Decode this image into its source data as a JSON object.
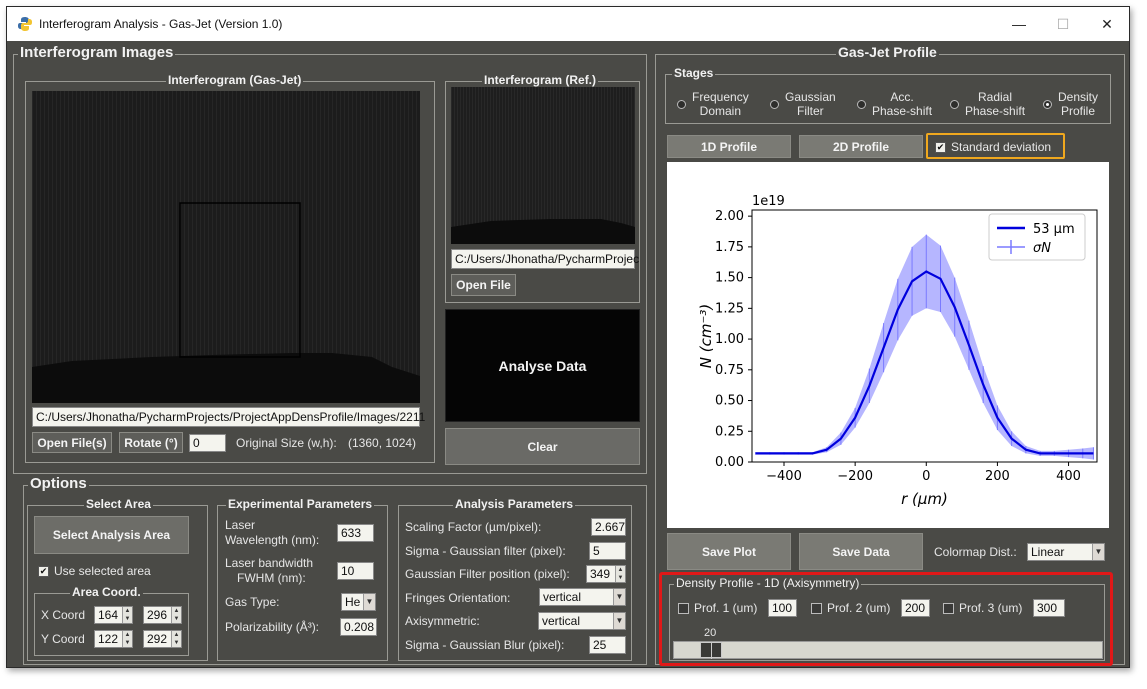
{
  "window": {
    "title": "Interferogram Analysis - Gas-Jet (Version 1.0)",
    "controls": {
      "minimize": "—",
      "maximize": "☐",
      "close": "✕"
    }
  },
  "images": {
    "section_title": "Interferogram Images",
    "gasjet_title": "Interferogram (Gas-Jet)",
    "gasjet_path": "C:/Users/Jhonatha/PycharmProjects/ProjectAppDensProfile/Images/2211",
    "open_files_label": "Open File(s)",
    "rotate_label": "Rotate (°)",
    "rotate_value": "0",
    "original_size_label": "Original Size (w,h):",
    "original_size_value": "(1360, 1024)",
    "ref_title": "Interferogram (Ref.)",
    "ref_path": "C:/Users/Jhonatha/PycharmProjec",
    "open_file_label": "Open File",
    "analyse_label": "Analyse Data",
    "clear_label": "Clear"
  },
  "options": {
    "section_title": "Options",
    "select_area": {
      "title": "Select Area",
      "button": "Select Analysis Area",
      "use_selected": "Use selected area",
      "use_selected_checked": true,
      "coord_title": "Area Coord.",
      "x_label": "X Coord",
      "x1": "164",
      "x2": "296",
      "y_label": "Y Coord",
      "y1": "122",
      "y2": "292"
    },
    "experimental": {
      "title": "Experimental Parameters",
      "wavelength_label_1": "Laser",
      "wavelength_label_2": "Wavelength (nm):",
      "wavelength_value": "633",
      "bandwidth_label_1": "Laser bandwidth",
      "bandwidth_label_2": "FWHM  (nm):",
      "bandwidth_value": "10",
      "gas_type_label": "Gas Type:",
      "gas_type_value": "He",
      "polarizability_label": "Polarizability (Å³):",
      "polarizability_value": "0.208"
    },
    "analysis": {
      "title": "Analysis Parameters",
      "scaling_label": "Scaling Factor (µm/pixel):",
      "scaling_value": "2.667",
      "sigma_gauss_label": "Sigma - Gaussian filter (pixel):",
      "sigma_gauss_value": "5",
      "gauss_pos_label": "Gaussian Filter position (pixel):",
      "gauss_pos_value": "349",
      "fringes_label": "Fringes Orientation:",
      "fringes_value": "vertical",
      "axisym_label": "Axisymmetric:",
      "axisym_value": "vertical",
      "blur_label": "Sigma - Gaussian Blur (pixel):",
      "blur_value": "25"
    }
  },
  "profile": {
    "section_title": "Gas-Jet Profile",
    "stages_title": "Stages",
    "stages": [
      {
        "line1": "Frequency",
        "line2": "Domain",
        "selected": false
      },
      {
        "line1": "Gaussian",
        "line2": "Filter",
        "selected": false
      },
      {
        "line1": "Acc.",
        "line2": "Phase-shift",
        "selected": false
      },
      {
        "line1": "Radial",
        "line2": "Phase-shift",
        "selected": false
      },
      {
        "line1": "Density",
        "line2": "Profile",
        "selected": true
      }
    ],
    "btn_1d": "1D Profile",
    "btn_2d": "2D Profile",
    "std_label": "Standard deviation",
    "std_checked": true,
    "save_plot": "Save Plot",
    "save_data": "Save Data",
    "colormap_label": "Colormap Dist.:",
    "colormap_value": "Linear",
    "density_title": "Density Profile - 1D (Axisymmetry)",
    "prof1_label": "Prof. 1 (um)",
    "prof1_value": "100",
    "prof2_label": "Prof. 2 (um)",
    "prof2_value": "200",
    "prof3_label": "Prof. 3 (um)",
    "prof3_value": "300",
    "slider_value": "20"
  },
  "colors": {
    "panel_bg": "#4a4a46",
    "series_color": "#0000dd",
    "err_color": "#7a7aff",
    "highlight_orange": "#f0a81e",
    "highlight_red": "#e01818"
  },
  "chart_data": {
    "type": "line",
    "title": "",
    "offset_text": "1e19",
    "xlabel": "r (µm)",
    "ylabel": "N (cm⁻³)",
    "xlim": [
      -490,
      480
    ],
    "ylim": [
      0,
      2.05
    ],
    "xticks": [
      -400,
      -200,
      0,
      200,
      400
    ],
    "xtick_labels": [
      "−400",
      "−200",
      "0",
      "200",
      "400"
    ],
    "yticks": [
      0,
      0.25,
      0.5,
      0.75,
      1.0,
      1.25,
      1.5,
      1.75,
      2.0
    ],
    "ytick_labels": [
      "0.00",
      "0.25",
      "0.50",
      "0.75",
      "1.00",
      "1.25",
      "1.50",
      "1.75",
      "2.00"
    ],
    "legend_position": "top-right",
    "legend": [
      {
        "label": "53 µm",
        "style": "line"
      },
      {
        "label": "σN",
        "style": "errorbar"
      }
    ],
    "series": [
      {
        "name": "53 µm",
        "x": [
          -480,
          -440,
          -400,
          -360,
          -320,
          -280,
          -240,
          -200,
          -160,
          -120,
          -80,
          -40,
          0,
          40,
          80,
          120,
          160,
          200,
          240,
          280,
          320,
          360,
          400,
          440,
          470
        ],
        "y": [
          0.07,
          0.07,
          0.07,
          0.07,
          0.07,
          0.1,
          0.19,
          0.36,
          0.62,
          0.93,
          1.24,
          1.47,
          1.55,
          1.49,
          1.26,
          0.95,
          0.63,
          0.36,
          0.19,
          0.1,
          0.07,
          0.07,
          0.07,
          0.07,
          0.07
        ],
        "std": [
          0.01,
          0.01,
          0.01,
          0.01,
          0.01,
          0.02,
          0.05,
          0.08,
          0.14,
          0.2,
          0.25,
          0.28,
          0.3,
          0.27,
          0.24,
          0.2,
          0.15,
          0.1,
          0.06,
          0.03,
          0.02,
          0.02,
          0.03,
          0.04,
          0.05
        ]
      }
    ]
  }
}
